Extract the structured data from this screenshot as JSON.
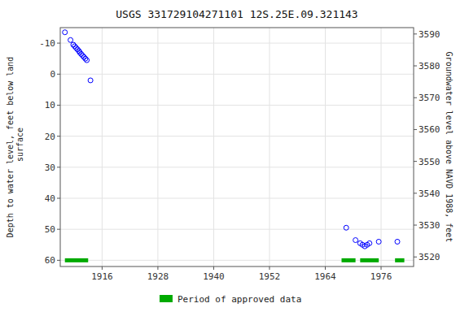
{
  "chart_data": {
    "type": "scatter",
    "title": "USGS 331729104271101 12S.25E.09.321143",
    "ylabel": "Depth to water level, feet below land\n surface",
    "y2label": "Groundwater level above NAVD 1988, feet",
    "xlim": [
      1907,
      1983
    ],
    "xticks": [
      1916,
      1928,
      1940,
      1952,
      1964,
      1976
    ],
    "ylim": [
      62,
      -15
    ],
    "yticks": [
      -10,
      0,
      10,
      20,
      30,
      40,
      50,
      60
    ],
    "y2lim": [
      3517,
      3592
    ],
    "y2ticks": [
      3520,
      3530,
      3540,
      3550,
      3560,
      3570,
      3580,
      3590
    ],
    "grid": true,
    "legend": "bottom",
    "series": [
      {
        "type": "scatter",
        "color": "#0000ff",
        "marker": "open-circle",
        "x": [
          1908.0,
          1909.2,
          1909.8,
          1910.1,
          1910.4,
          1910.7,
          1911.0,
          1911.2,
          1911.5,
          1911.8,
          1912.1,
          1912.4,
          1912.7,
          1913.5
        ],
        "values": [
          -13.5,
          -11.0,
          -9.5,
          -9.0,
          -8.5,
          -8.0,
          -7.5,
          -7.0,
          -6.5,
          -6.0,
          -5.5,
          -5.0,
          -4.5,
          2.0
        ]
      },
      {
        "type": "scatter",
        "color": "#0000ff",
        "marker": "open-circle",
        "x": [
          1968.5,
          1970.5,
          1971.5,
          1972.0,
          1972.5,
          1973.0,
          1973.5,
          1975.5,
          1979.5
        ],
        "values": [
          49.5,
          53.5,
          54.5,
          55.0,
          55.5,
          55.0,
          54.5,
          54.0,
          54.0
        ]
      },
      {
        "type": "segments",
        "name": "Period of approved data",
        "color": "#00aa00",
        "x_start": [
          1908.0,
          1967.5,
          1971.5,
          1979.0
        ],
        "x_end": [
          1913.0,
          1970.5,
          1975.5,
          1981.0
        ],
        "values": [
          60,
          60,
          60,
          60
        ]
      }
    ]
  }
}
